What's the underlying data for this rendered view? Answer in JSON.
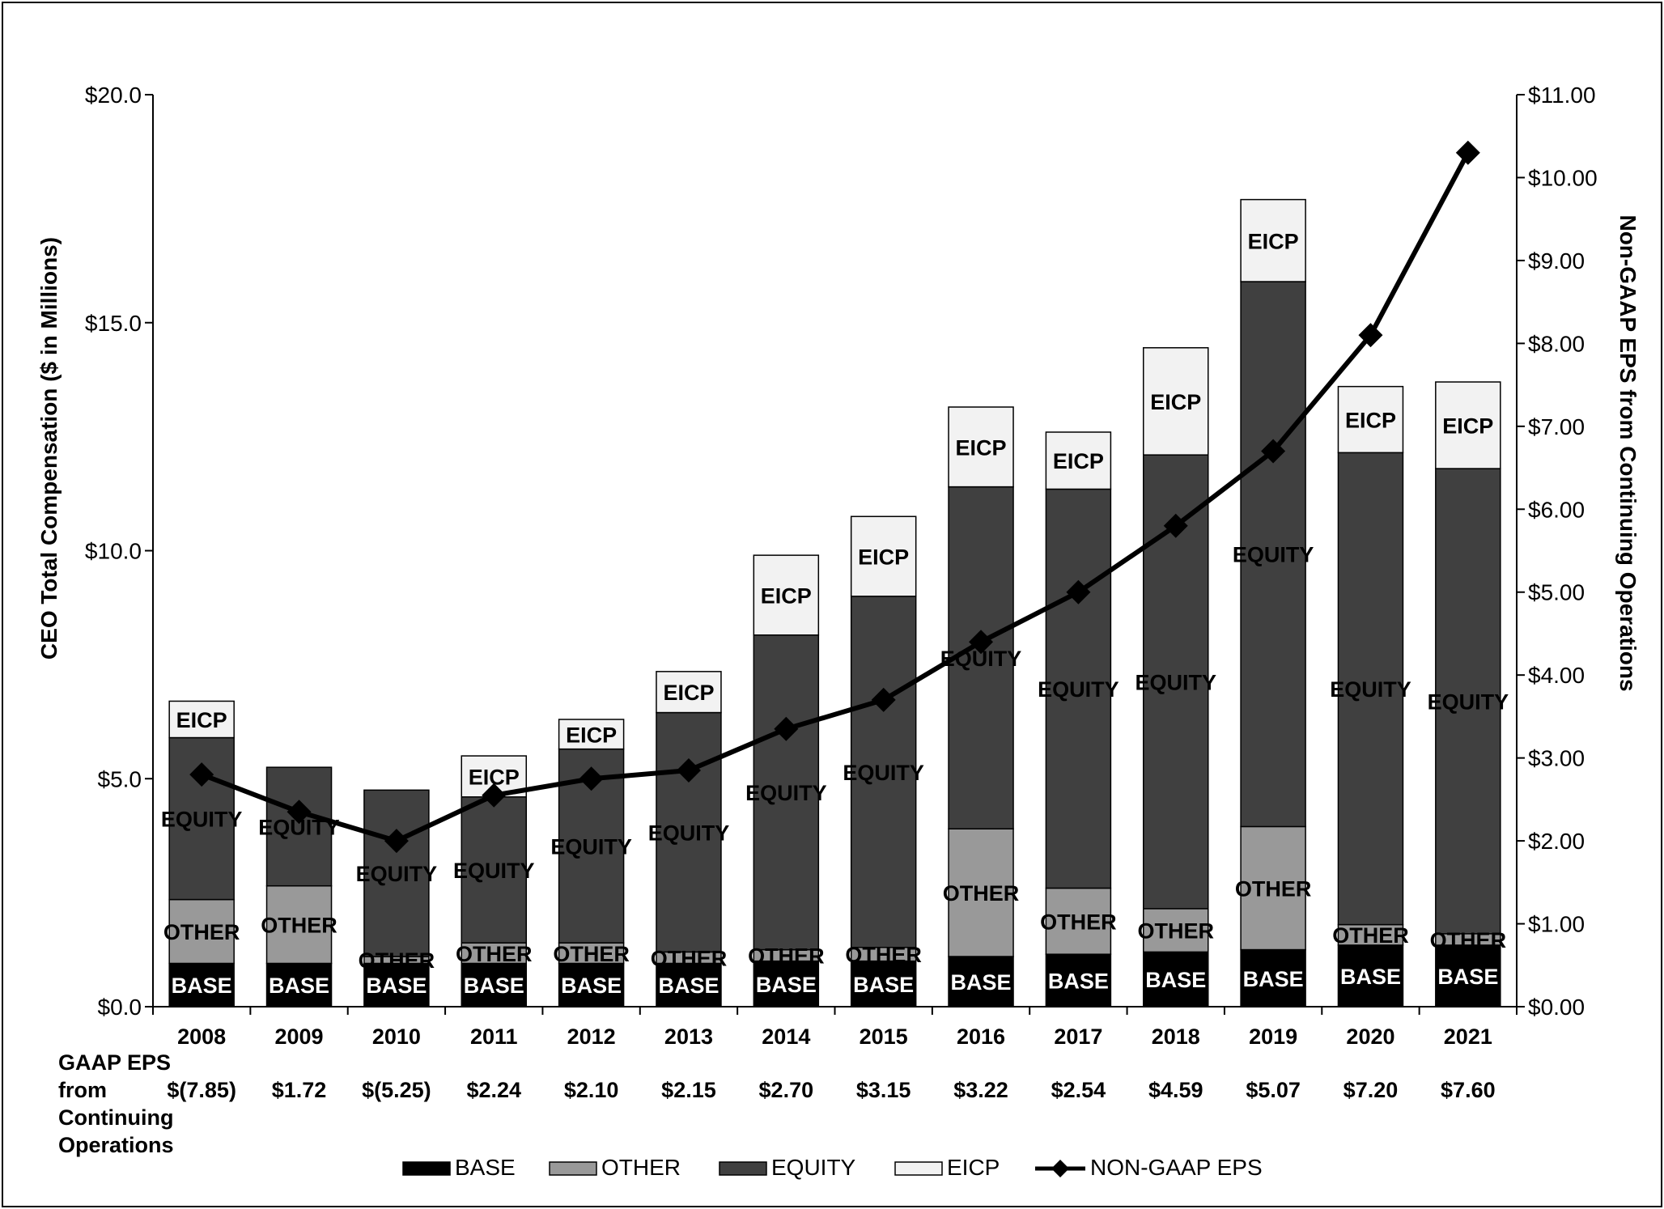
{
  "chart_data": {
    "type": "bar",
    "stacked": true,
    "categories": [
      "2008",
      "2009",
      "2010",
      "2011",
      "2012",
      "2013",
      "2014",
      "2015",
      "2016",
      "2017",
      "2018",
      "2019",
      "2020",
      "2021"
    ],
    "series": [
      {
        "name": "BASE",
        "label": "BASE",
        "color": "#000000",
        "text_color": "#ffffff",
        "values": [
          0.95,
          0.95,
          0.95,
          0.95,
          0.95,
          0.95,
          1.0,
          1.0,
          1.1,
          1.15,
          1.2,
          1.25,
          1.35,
          1.35
        ]
      },
      {
        "name": "OTHER",
        "label": "OTHER",
        "color": "#999999",
        "text_color": "#000000",
        "values": [
          1.4,
          1.7,
          0.15,
          0.45,
          0.45,
          0.25,
          0.25,
          0.3,
          2.8,
          1.45,
          0.95,
          2.7,
          0.45,
          0.25
        ]
      },
      {
        "name": "EQUITY",
        "label": "EQUITY",
        "color": "#404040",
        "text_color": "#000000",
        "values": [
          3.55,
          2.6,
          3.65,
          3.2,
          4.25,
          5.25,
          6.9,
          7.7,
          7.5,
          8.75,
          9.95,
          11.95,
          10.35,
          10.2
        ]
      },
      {
        "name": "EICP",
        "label": "EICP",
        "color": "#f2f2f2",
        "text_color": "#000000",
        "values": [
          0.8,
          0,
          0,
          0.9,
          0.65,
          0.9,
          1.75,
          1.75,
          1.75,
          1.25,
          2.35,
          1.8,
          1.45,
          1.9
        ]
      }
    ],
    "line": {
      "name": "NON-GAAP EPS",
      "axis": "right",
      "color": "#000000",
      "values": [
        2.8,
        2.35,
        2.0,
        2.55,
        2.75,
        2.85,
        3.35,
        3.7,
        4.4,
        5.0,
        5.8,
        6.7,
        8.1,
        10.3
      ]
    },
    "left_axis": {
      "title": "CEO Total Compensation ($ in Millions)",
      "ylim": [
        0,
        20
      ],
      "ticks": [
        0,
        5,
        10,
        15,
        20
      ],
      "tick_labels": [
        "$0.0",
        "$5.0",
        "$10.0",
        "$15.0",
        "$20.0"
      ]
    },
    "right_axis": {
      "title": "Non-GAAP EPS from Continuing Operations",
      "ylim": [
        0,
        11
      ],
      "ticks": [
        0,
        1,
        2,
        3,
        4,
        5,
        6,
        7,
        8,
        9,
        10,
        11
      ],
      "tick_labels": [
        "$0.00",
        "$1.00",
        "$2.00",
        "$3.00",
        "$4.00",
        "$5.00",
        "$6.00",
        "$7.00",
        "$8.00",
        "$9.00",
        "$10.00",
        "$11.00"
      ]
    },
    "gaap_eps": {
      "label_lines": [
        "GAAP  EPS",
        "from",
        "Continuing",
        "Operations"
      ],
      "values": [
        "$(7.85)",
        "$1.72",
        "$(5.25)",
        "$2.24",
        "$2.10",
        "$2.15",
        "$2.70",
        "$3.15",
        "$3.22",
        "$2.54",
        "$4.59",
        "$5.07",
        "$7.20",
        "$7.60"
      ]
    },
    "legend": {
      "position": "bottom-center",
      "items": [
        {
          "label": "BASE",
          "color": "#000000",
          "kind": "box"
        },
        {
          "label": "OTHER",
          "color": "#999999",
          "kind": "box"
        },
        {
          "label": "EQUITY",
          "color": "#404040",
          "kind": "box"
        },
        {
          "label": "EICP",
          "color": "#f2f2f2",
          "kind": "box"
        },
        {
          "label": "NON-GAAP EPS",
          "color": "#000000",
          "kind": "line-diamond"
        }
      ]
    }
  }
}
